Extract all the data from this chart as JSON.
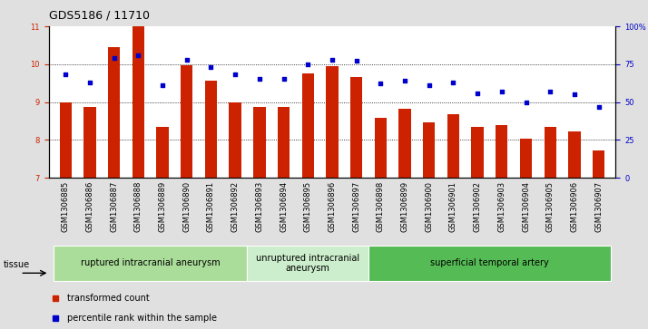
{
  "title": "GDS5186 / 11710",
  "samples": [
    "GSM1306885",
    "GSM1306886",
    "GSM1306887",
    "GSM1306888",
    "GSM1306889",
    "GSM1306890",
    "GSM1306891",
    "GSM1306892",
    "GSM1306893",
    "GSM1306894",
    "GSM1306895",
    "GSM1306896",
    "GSM1306897",
    "GSM1306898",
    "GSM1306899",
    "GSM1306900",
    "GSM1306901",
    "GSM1306902",
    "GSM1306903",
    "GSM1306904",
    "GSM1306905",
    "GSM1306906",
    "GSM1306907"
  ],
  "bar_values": [
    9.0,
    8.88,
    10.46,
    11.0,
    8.35,
    9.96,
    9.56,
    9.0,
    8.88,
    8.88,
    9.75,
    9.95,
    9.65,
    8.58,
    8.83,
    8.45,
    8.68,
    8.33,
    8.38,
    8.02,
    8.33,
    8.22,
    7.72
  ],
  "percentile_values": [
    68,
    63,
    79,
    81,
    61,
    78,
    73,
    68,
    65,
    65,
    75,
    78,
    77,
    62,
    64,
    61,
    63,
    56,
    57,
    50,
    57,
    55,
    47
  ],
  "bar_color": "#cc2200",
  "dot_color": "#0000cc",
  "ylim_left": [
    7,
    11
  ],
  "ylim_right": [
    0,
    100
  ],
  "yticks_left": [
    7,
    8,
    9,
    10,
    11
  ],
  "yticks_right": [
    0,
    25,
    50,
    75,
    100
  ],
  "ytick_labels_right": [
    "0",
    "25",
    "50",
    "75",
    "100%"
  ],
  "groups": [
    {
      "label": "ruptured intracranial aneurysm",
      "start": 0,
      "end": 8,
      "color": "#aadd99"
    },
    {
      "label": "unruptured intracranial\naneurysm",
      "start": 8,
      "end": 13,
      "color": "#cceecc"
    },
    {
      "label": "superficial temporal artery",
      "start": 13,
      "end": 23,
      "color": "#55bb55"
    }
  ],
  "tissue_label": "tissue",
  "legend_items": [
    {
      "label": "transformed count",
      "color": "#cc2200"
    },
    {
      "label": "percentile rank within the sample",
      "color": "#0000cc"
    }
  ],
  "background_color": "#e0e0e0",
  "plot_bg_color": "#ffffff",
  "bar_width": 0.5,
  "title_fontsize": 9,
  "tick_fontsize": 6,
  "label_fontsize": 7,
  "group_fontsize": 7
}
